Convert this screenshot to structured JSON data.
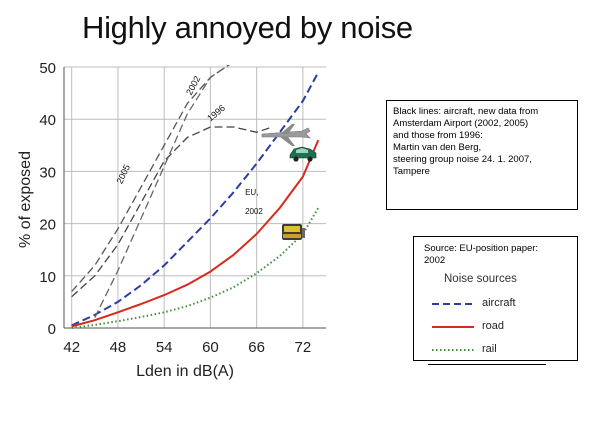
{
  "title": "Highly annoyed by noise",
  "note": {
    "lines": [
      "Black lines: aircraft, new data from",
      "Amsterdam Airport (2002, 2005)",
      "and those from 1996:",
      "Martin van den Berg,",
      "steering group noise 24. 1. 2007,",
      "Tampere"
    ]
  },
  "legend": {
    "source_lines": [
      "Source: EU-position paper:",
      "2002"
    ],
    "title": "Noise sources",
    "items": [
      {
        "label": "aircraft",
        "color": "#2b3fa0",
        "style": "dashed"
      },
      {
        "label": "road",
        "color": "#d62a1c",
        "style": "solid"
      },
      {
        "label": "rail",
        "color": "#3f8f3a",
        "style": "dotted"
      }
    ]
  },
  "chart_data": {
    "type": "line",
    "title": "Highly annoyed by noise",
    "xlabel": "Lden in dB(A)",
    "ylabel": "% of exposed",
    "xlim": [
      41,
      75
    ],
    "ylim": [
      0,
      50
    ],
    "x_ticks": [
      42,
      48,
      54,
      60,
      66,
      72
    ],
    "y_ticks": [
      0,
      10,
      20,
      30,
      40,
      50
    ],
    "grid": true,
    "annotations": [
      {
        "text": "2002",
        "x": 57.5,
        "y": 44.5
      },
      {
        "text": "1996",
        "x": 60.0,
        "y": 39.5
      },
      {
        "text": "2005",
        "x": 48.5,
        "y": 27.5
      },
      {
        "text": "EU,",
        "x": 64.5,
        "y": 25.5
      },
      {
        "text": "2002",
        "x": 64.5,
        "y": 21.8
      }
    ],
    "series": [
      {
        "name": "aircraft",
        "color": "#2b3fa0",
        "style": "dashed",
        "x": [
          42,
          45,
          48,
          51,
          54,
          57,
          60,
          63,
          66,
          69,
          72,
          74
        ],
        "y": [
          0.5,
          2.5,
          5.0,
          8.2,
          12.0,
          16.5,
          21.0,
          26.0,
          31.5,
          37.5,
          43.5,
          49.0
        ]
      },
      {
        "name": "road",
        "color": "#d62a1c",
        "style": "solid",
        "x": [
          42,
          45,
          48,
          51,
          54,
          57,
          60,
          63,
          66,
          69,
          72,
          74
        ],
        "y": [
          0.3,
          1.5,
          3.0,
          4.6,
          6.3,
          8.3,
          10.8,
          14.0,
          18.0,
          23.0,
          29.0,
          36.0
        ]
      },
      {
        "name": "rail",
        "color": "#3f8f3a",
        "style": "dotted",
        "x": [
          42,
          45,
          48,
          51,
          54,
          57,
          60,
          63,
          66,
          69,
          72,
          74
        ],
        "y": [
          0.0,
          0.6,
          1.3,
          2.1,
          3.0,
          4.2,
          5.8,
          7.8,
          10.5,
          13.8,
          18.0,
          23.0
        ]
      },
      {
        "name": "aircraft 2002",
        "color": "#555555",
        "style": "dashed",
        "x": [
          42,
          45,
          48,
          51,
          54,
          57,
          60,
          63
        ],
        "y": [
          7,
          12,
          19,
          27,
          35,
          43,
          48,
          51
        ]
      },
      {
        "name": "aircraft 1996",
        "color": "#444444",
        "style": "dashed",
        "x": [
          42,
          45,
          48,
          51,
          54,
          57,
          60,
          63,
          66,
          68
        ],
        "y": [
          6,
          10,
          16,
          24,
          32,
          36.5,
          38.5,
          38.5,
          37.5,
          38.5
        ]
      },
      {
        "name": "aircraft 2005",
        "color": "#666666",
        "style": "dashed",
        "x": [
          45,
          48,
          51,
          54,
          57,
          60,
          63
        ],
        "y": [
          2,
          11,
          21,
          31,
          41,
          48,
          51
        ]
      }
    ]
  }
}
